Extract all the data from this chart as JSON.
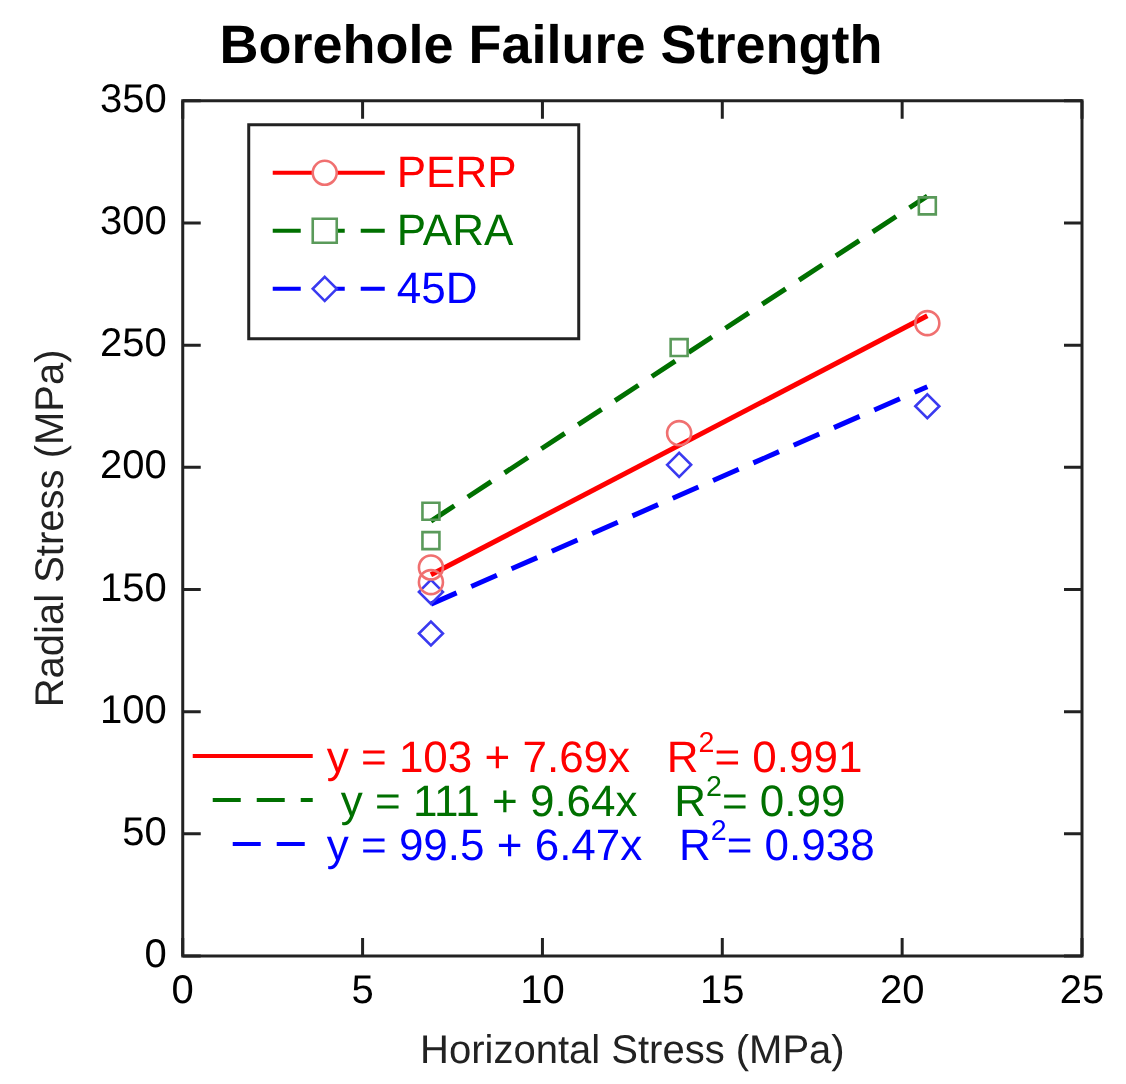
{
  "chart_data": {
    "type": "scatter",
    "title": "Borehole Failure Strength",
    "xlabel": "Horizontal Stress (MPa)",
    "ylabel": "Radial Stress (MPa)",
    "xlim": [
      0,
      25
    ],
    "xticks": [
      0,
      5,
      10,
      15,
      20,
      25
    ],
    "ylim": [
      0,
      350
    ],
    "yticks": [
      0,
      50,
      100,
      150,
      200,
      250,
      300,
      350
    ],
    "grid": false,
    "legend": "top left",
    "series": [
      {
        "name": "PERP",
        "marker": "circle",
        "color": "#f07070",
        "x": [
          6.9,
          6.9,
          13.8,
          20.7
        ],
        "values": [
          159,
          153,
          214,
          259
        ]
      },
      {
        "name": "PARA",
        "marker": "square",
        "color": "#5a9a5a",
        "x": [
          6.9,
          6.9,
          13.8,
          20.7
        ],
        "values": [
          182,
          170,
          249,
          307
        ]
      },
      {
        "name": "45D",
        "marker": "diamond",
        "color": "#3a3af0",
        "x": [
          6.9,
          6.9,
          13.8,
          20.7
        ],
        "values": [
          149,
          132,
          201,
          225
        ]
      },
      {
        "type": "line",
        "line_style": "solid",
        "color": "#ff0000",
        "x": [
          6.9,
          20.7
        ],
        "values": [
          156,
          262
        ]
      },
      {
        "type": "line",
        "line_style": "dashed",
        "color": "#007000",
        "x": [
          6.9,
          20.7
        ],
        "values": [
          178,
          311
        ]
      },
      {
        "type": "line",
        "line_style": "dashed",
        "color": "#0000ff",
        "x": [
          6.9,
          20.7
        ],
        "values": [
          144,
          233
        ]
      }
    ],
    "annotations": [
      "y = 103 + 7.69x   R$^{2}$= 0.991",
      "y = 111 + 9.64x   R$^{2}$= 0.99",
      "y = 99.5 + 6.47x   R$^{2}$= 0.938"
    ]
  }
}
